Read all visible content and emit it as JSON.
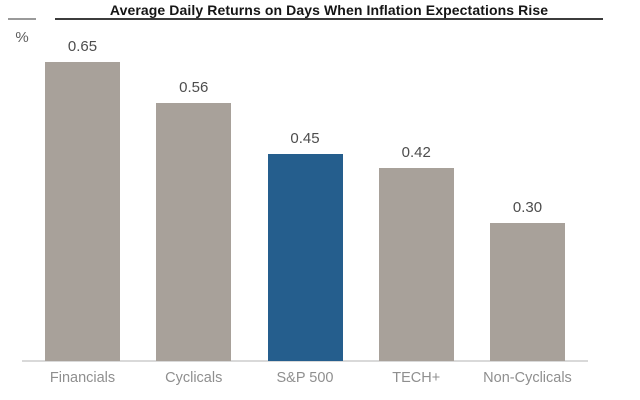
{
  "chart_data": {
    "type": "bar",
    "title": "Average Daily Returns on Days When Inflation Expectations Rise",
    "ylabel": "%",
    "xlabel": "",
    "categories": [
      "Financials",
      "Cyclicals",
      "S&P 500",
      "TECH+",
      "Non-Cyclicals"
    ],
    "values": [
      0.65,
      0.56,
      0.45,
      0.42,
      0.3
    ],
    "value_labels": [
      "0.65",
      "0.56",
      "0.45",
      "0.42",
      "0.30"
    ],
    "bar_colors": [
      "#a8a19a",
      "#a8a19a",
      "#255e8d",
      "#a8a19a",
      "#a8a19a"
    ],
    "highlighted_category": "S&P 500",
    "ylim": [
      0,
      0.7
    ],
    "grid": false,
    "legend_position": "none",
    "colors": {
      "bar_default": "#a8a19a",
      "bar_highlight": "#255e8d",
      "title_text": "#151515",
      "title_underline": "#3c3c3c",
      "unit_label": "#5f5f5f",
      "baseline": "#d9d9d9",
      "value_label": "#4d4d4d",
      "category_label": "#8f8f8f",
      "background": "#ffffff"
    }
  }
}
